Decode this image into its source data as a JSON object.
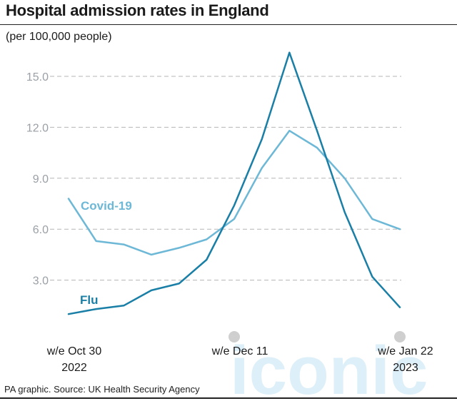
{
  "title": "Hospital admission rates in England",
  "subtitle": "(per 100,000 people)",
  "source": "PA graphic. Source: UK Health Security Agency",
  "watermark": "iconic",
  "chart_data": {
    "type": "line",
    "title": "Hospital admission rates in England",
    "subtitle": "(per 100,000 people)",
    "xlabel": "",
    "ylabel": "",
    "ylim": [
      0,
      16.5
    ],
    "yticks": [
      3.0,
      6.0,
      9.0,
      12.0,
      15.0
    ],
    "ytick_labels": [
      "3.0",
      "6.0",
      "9.0",
      "12.0",
      "15.0"
    ],
    "grid": "horizontal dashed",
    "x": [
      "2022-10-30",
      "2022-11-06",
      "2022-11-13",
      "2022-11-20",
      "2022-11-27",
      "2022-12-04",
      "2022-12-11",
      "2022-12-18",
      "2022-12-25",
      "2023-01-01",
      "2023-01-08",
      "2023-01-15",
      "2023-01-22"
    ],
    "x_tick_labels": [
      {
        "x": "2022-10-30",
        "lines": [
          "w/e Oct 30",
          "2022"
        ]
      },
      {
        "x": "2022-12-11",
        "lines": [
          "w/e Dec 11"
        ]
      },
      {
        "x": "2023-01-22",
        "lines": [
          "w/e Jan 22",
          "2023"
        ]
      }
    ],
    "series": [
      {
        "name": "Covid-19",
        "color": "#6db8d6",
        "values": [
          7.8,
          5.3,
          5.1,
          4.5,
          4.9,
          5.4,
          6.6,
          9.6,
          11.8,
          10.8,
          9.0,
          6.6,
          6.0
        ]
      },
      {
        "name": "Flu",
        "color": "#1a7fa6",
        "values": [
          1.0,
          1.3,
          1.5,
          2.4,
          2.8,
          4.2,
          7.4,
          11.3,
          16.4,
          11.8,
          7.0,
          3.2,
          1.4
        ]
      }
    ]
  }
}
